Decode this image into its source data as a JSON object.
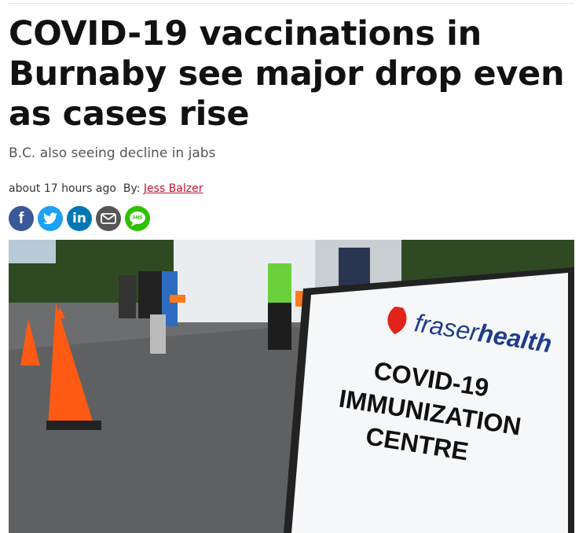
{
  "article": {
    "headline": "COVID-19 vaccinations in Burnaby see major drop even as cases rise",
    "subtitle": "B.C. also seeing decline in jabs",
    "timestamp": "about 17 hours ago",
    "byline_prefix": "By:",
    "author": "Jess Balzer",
    "share": {
      "facebook": "f",
      "linkedin": "in",
      "sms": "SMS"
    },
    "photo": {
      "logo_plain": "fraser",
      "logo_bold": "health",
      "sign_lines": [
        "COVID-19",
        "IMMUNIZATION",
        "CENTRE"
      ]
    }
  }
}
